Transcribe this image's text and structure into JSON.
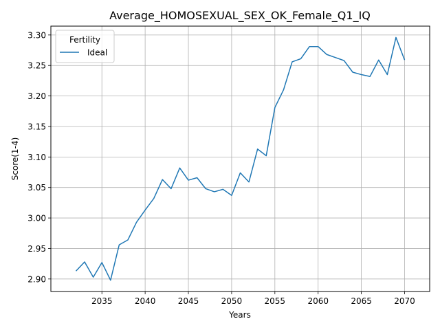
{
  "chart_data": {
    "type": "line",
    "title": "Average_HOMOSEXUAL_SEX_OK_Female_Q1_IQ",
    "xlabel": "Years",
    "ylabel": "Score(1-4)",
    "xlim": [
      2029.1,
      2072.9
    ],
    "ylim": [
      2.8795,
      3.3145
    ],
    "grid": true,
    "legend": {
      "title": "Fertility",
      "placement": "top-left"
    },
    "x_ticks": [
      2035,
      2040,
      2045,
      2050,
      2055,
      2060,
      2065,
      2070
    ],
    "y_ticks": [
      2.9,
      2.95,
      3.0,
      3.05,
      3.1,
      3.15,
      3.2,
      3.25,
      3.3
    ],
    "x_tick_labels": [
      "2035",
      "2040",
      "2045",
      "2050",
      "2055",
      "2060",
      "2065",
      "2070"
    ],
    "y_tick_labels": [
      "2.90",
      "2.95",
      "3.00",
      "3.05",
      "3.10",
      "3.15",
      "3.20",
      "3.25",
      "3.30"
    ],
    "x": [
      2032,
      2033,
      2034,
      2035,
      2036,
      2037,
      2038,
      2039,
      2040,
      2041,
      2042,
      2043,
      2044,
      2045,
      2046,
      2047,
      2048,
      2049,
      2050,
      2051,
      2052,
      2053,
      2054,
      2055,
      2056,
      2057,
      2058,
      2059,
      2060,
      2061,
      2062,
      2063,
      2064,
      2065,
      2066,
      2067,
      2068,
      2069,
      2070
    ],
    "series": [
      {
        "name": "Ideal",
        "color": "#1f77b4",
        "values": [
          2.913,
          2.928,
          2.903,
          2.927,
          2.898,
          2.956,
          2.964,
          2.993,
          3.013,
          3.032,
          3.063,
          3.048,
          3.082,
          3.062,
          3.066,
          3.048,
          3.043,
          3.047,
          3.037,
          3.074,
          3.059,
          3.113,
          3.102,
          3.181,
          3.21,
          3.256,
          3.261,
          3.281,
          3.281,
          3.268,
          3.263,
          3.258,
          3.239,
          3.235,
          3.232,
          3.259,
          3.235,
          3.296,
          3.259
        ]
      }
    ]
  }
}
